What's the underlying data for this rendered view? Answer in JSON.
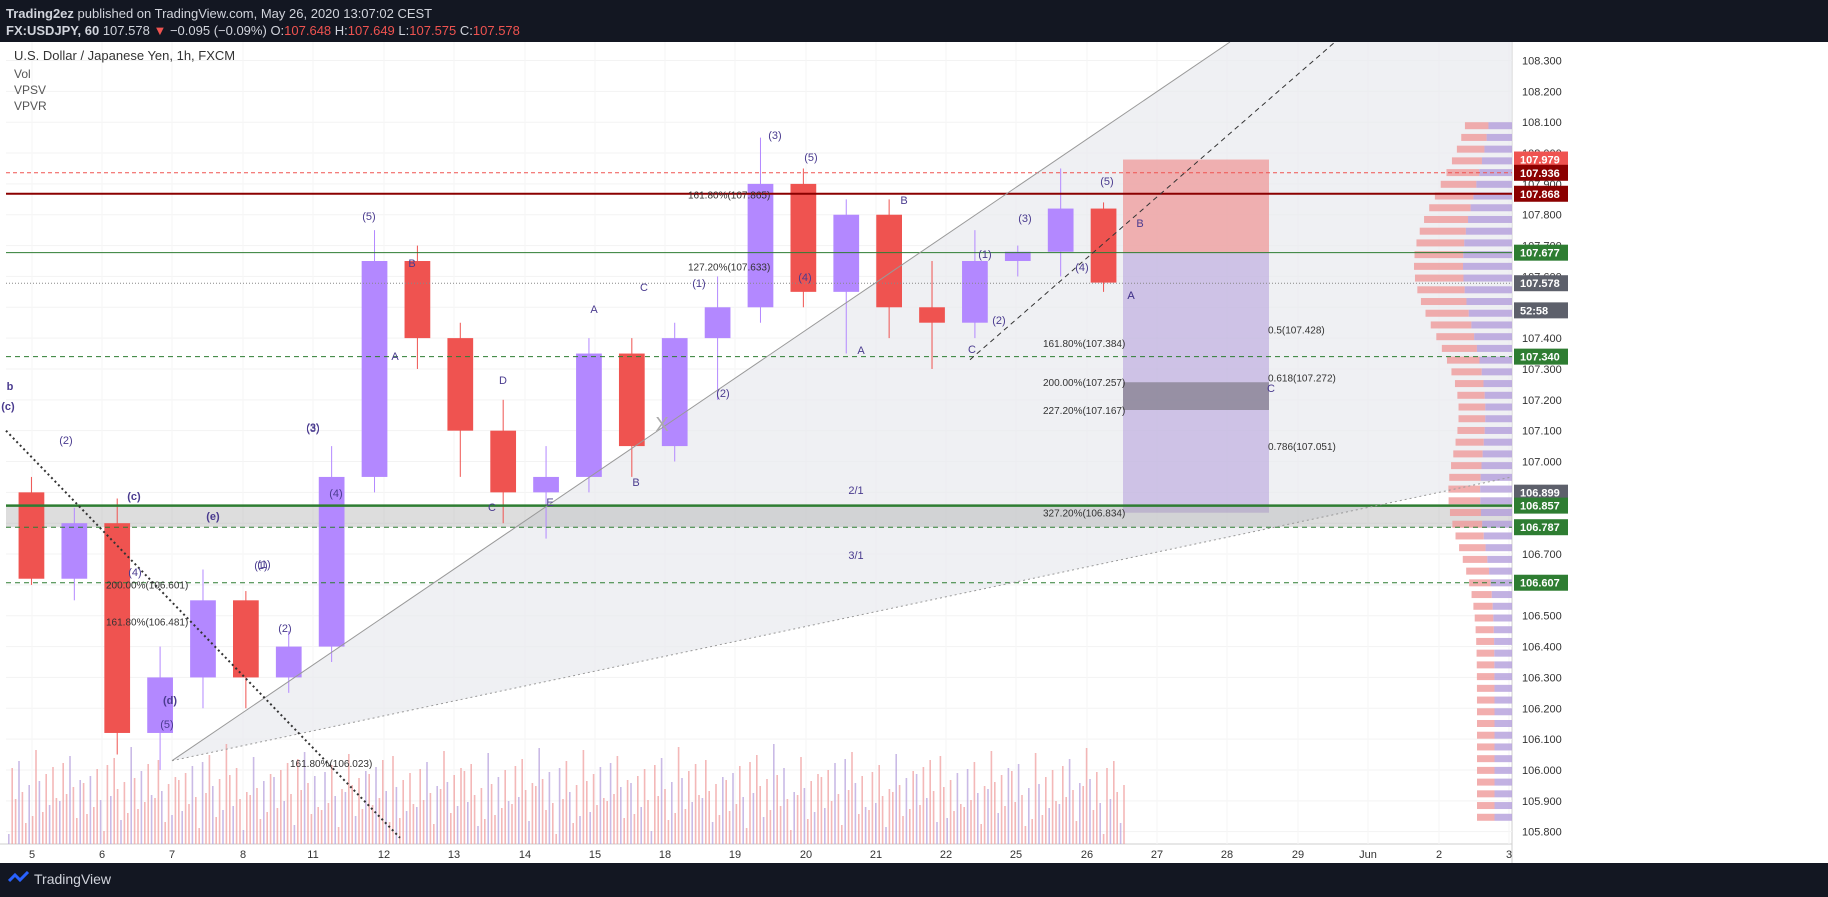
{
  "header": {
    "publisher": "Trading2ez",
    "published_text": " published on TradingView.com, May 26, 2020 13:07:02 CEST",
    "symbol": "FX:USDJPY, 60",
    "last": "107.578",
    "change": "−0.095 (−0.09%)",
    "open_label": "O:",
    "open": "107.648",
    "high_label": "H:",
    "high": "107.649",
    "low_label": "L:",
    "low": "107.575",
    "close_label": "C:",
    "close": "107.578"
  },
  "legend": {
    "title": "U.S. Dollar / Japanese Yen, 1h, FXCM",
    "indicators": [
      "Vol",
      "VPSV",
      "VPVR"
    ]
  },
  "footer": {
    "brand": "TradingView"
  },
  "colors": {
    "up": "#b388ff",
    "down": "#ef5350",
    "bg": "#ffffff",
    "panel": "#131722",
    "fib": "#333333"
  },
  "chart_data": {
    "type": "candlestick",
    "title": "U.S. Dollar / Japanese Yen, 1h, FXCM",
    "x_tick_labels": [
      "5",
      "6",
      "7",
      "8",
      "11",
      "12",
      "13",
      "14",
      "15",
      "18",
      "19",
      "20",
      "21",
      "22",
      "25",
      "26",
      "27",
      "28",
      "29",
      "Jun",
      "2",
      "3"
    ],
    "y_tick_labels": [
      "108.300",
      "108.200",
      "108.100",
      "108.000",
      "107.900",
      "107.800",
      "107.700",
      "107.600",
      "107.500",
      "107.400",
      "107.300",
      "107.200",
      "107.100",
      "107.000",
      "106.900",
      "106.800",
      "106.700",
      "106.600",
      "106.500",
      "106.400",
      "106.300",
      "106.200",
      "106.100",
      "106.000",
      "105.900",
      "105.800"
    ],
    "ylim": [
      105.76,
      108.36
    ],
    "price_badges": [
      {
        "label": "107.979",
        "value": 107.979,
        "color": "#ef5350"
      },
      {
        "label": "107.936",
        "value": 107.936,
        "color": "#8b0000"
      },
      {
        "label": "107.868",
        "value": 107.868,
        "color": "#8b0000"
      },
      {
        "label": "107.677",
        "value": 107.677,
        "color": "#2e7d32"
      },
      {
        "label": "107.578",
        "value": 107.578,
        "color": "#5d606b"
      },
      {
        "label": "52:58",
        "value": 107.49,
        "color": "#5d606b"
      },
      {
        "label": "107.340",
        "value": 107.34,
        "color": "#2e7d32"
      },
      {
        "label": "106.899",
        "value": 106.899,
        "color": "#5d606b"
      },
      {
        "label": "106.857",
        "value": 106.857,
        "color": "#2e7d32"
      },
      {
        "label": "106.787",
        "value": 106.787,
        "color": "#2e7d32"
      },
      {
        "label": "106.607",
        "value": 106.607,
        "color": "#2e7d32"
      }
    ],
    "fib_labels": [
      {
        "label": "161.80%(107.865)",
        "value": 107.865,
        "xi": 1.8
      },
      {
        "label": "127.20%(107.633)",
        "value": 107.633,
        "xi": 1.8
      },
      {
        "label": "200.00%(106.601)",
        "value": 106.601,
        "xi": 0.0
      },
      {
        "label": "161.80%(106.481)",
        "value": 106.481,
        "xi": 0.0
      },
      {
        "label": "161.80%(106.023)",
        "value": 106.023,
        "xi": 0.3
      },
      {
        "label": "161.80%(107.384)",
        "value": 107.384,
        "xi": 2.5
      },
      {
        "label": "200.00%(107.257)",
        "value": 107.257,
        "xi": 2.5
      },
      {
        "label": "227.20%(107.167)",
        "value": 107.167,
        "xi": 2.5
      },
      {
        "label": "327.20%(106.834)",
        "value": 106.834,
        "xi": 2.5
      },
      {
        "label": "0.5(107.428)",
        "value": 107.428,
        "xi": 3.0
      },
      {
        "label": "0.618(107.272)",
        "value": 107.272,
        "xi": 3.0
      },
      {
        "label": "0.786(107.051)",
        "value": 107.051,
        "xi": 3.0
      }
    ],
    "wave_labels": [
      "b",
      "(c)",
      "(c)",
      "(2)",
      "(1)",
      "(4)",
      "(3)",
      "(e)",
      "(d)",
      "(5)",
      "(1)",
      "(2)",
      "(3)",
      "(4)",
      "(5)",
      "B",
      "A",
      "D",
      "C",
      "E",
      "B",
      "A",
      "C",
      "X",
      "(1)",
      "(2)",
      "(3)",
      "(5)",
      "(4)",
      "B",
      "A",
      "(1)",
      "(2)",
      "(3)",
      "(4)",
      "(5)",
      "B",
      "A",
      "C",
      "C",
      "A",
      "2/1",
      "3/1"
    ],
    "ohlc": [
      [
        106.9,
        106.95,
        106.6,
        106.62
      ],
      [
        106.62,
        106.85,
        106.55,
        106.8
      ],
      [
        106.8,
        106.88,
        106.05,
        106.12
      ],
      [
        106.12,
        106.4,
        106.0,
        106.3
      ],
      [
        106.3,
        106.65,
        106.2,
        106.55
      ],
      [
        106.55,
        106.58,
        106.2,
        106.3
      ],
      [
        106.3,
        106.45,
        106.25,
        106.4
      ],
      [
        106.4,
        107.05,
        106.35,
        106.95
      ],
      [
        106.95,
        107.75,
        106.9,
        107.65
      ],
      [
        107.65,
        107.7,
        107.3,
        107.4
      ],
      [
        107.4,
        107.45,
        106.95,
        107.1
      ],
      [
        107.1,
        107.2,
        106.8,
        106.9
      ],
      [
        106.9,
        107.05,
        106.75,
        106.95
      ],
      [
        106.95,
        107.4,
        106.9,
        107.35
      ],
      [
        107.35,
        107.4,
        106.95,
        107.05
      ],
      [
        107.05,
        107.45,
        107.0,
        107.4
      ],
      [
        107.4,
        107.6,
        107.2,
        107.5
      ],
      [
        107.5,
        108.05,
        107.45,
        107.9
      ],
      [
        107.9,
        107.95,
        107.5,
        107.55
      ],
      [
        107.55,
        107.85,
        107.35,
        107.8
      ],
      [
        107.8,
        107.85,
        107.4,
        107.5
      ],
      [
        107.5,
        107.65,
        107.3,
        107.45
      ],
      [
        107.45,
        107.75,
        107.4,
        107.65
      ],
      [
        107.65,
        107.7,
        107.6,
        107.68
      ],
      [
        107.68,
        107.95,
        107.6,
        107.82
      ],
      [
        107.82,
        107.84,
        107.55,
        107.58
      ]
    ]
  }
}
